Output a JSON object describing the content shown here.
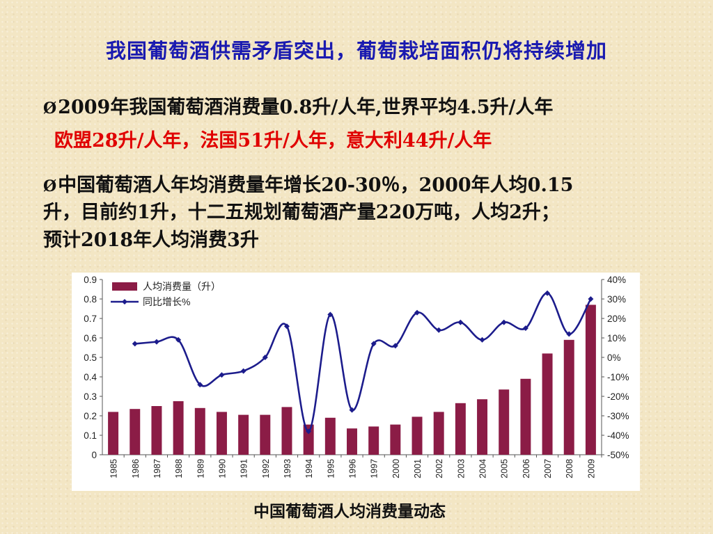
{
  "slide": {
    "title": "我国葡萄酒供需矛盾突出，葡萄栽培面积仍将持续增加",
    "bullet1": "2009年我国葡萄酒消费量0.8升/人年,世界平均4.5升/人年",
    "bullet1_red": "欧盟28升/人年，法国51升/人年，意大利44升/人年",
    "bullet2_line1": "中国葡萄酒人年均消费量年增长20-30％，2000年人均0.15",
    "bullet2_line2": "升，目前约1升，十二五规划葡萄酒产量220万吨，人均2升；",
    "bullet2_line3": "预计2018年人均消费3升",
    "bullet_marker": "Ø",
    "caption": "中国葡萄酒人均消费量动态"
  },
  "chart_data": {
    "type": "bar",
    "categories": [
      "1985",
      "1986",
      "1987",
      "1988",
      "1989",
      "1990",
      "1991",
      "1992",
      "1993",
      "1994",
      "1995",
      "1996",
      "1997",
      "2000",
      "2001",
      "2002",
      "2003",
      "2004",
      "2005",
      "2006",
      "2007",
      "2008",
      "2009"
    ],
    "series": [
      {
        "name": "人均消费量（升）",
        "type": "bar",
        "axis": "left",
        "color": "#8b1c46",
        "values": [
          0.22,
          0.235,
          0.25,
          0.275,
          0.24,
          0.22,
          0.205,
          0.205,
          0.245,
          0.155,
          0.19,
          0.135,
          0.145,
          0.155,
          0.195,
          0.22,
          0.265,
          0.285,
          0.335,
          0.39,
          0.52,
          0.59,
          0.77
        ]
      },
      {
        "name": "同比增长%",
        "type": "line",
        "axis": "right",
        "color": "#1c1c8c",
        "values": [
          null,
          7,
          8,
          9,
          -14,
          -9,
          -7,
          0,
          16,
          -38,
          22,
          -27,
          7,
          6,
          23,
          14,
          18,
          9,
          18,
          15,
          33,
          12,
          30
        ]
      }
    ],
    "y_left": {
      "min": 0,
      "max": 0.9,
      "ticks": [
        "0",
        "0.1",
        "0.2",
        "0.3",
        "0.4",
        "0.5",
        "0.6",
        "0.7",
        "0.8",
        "0.9"
      ]
    },
    "y_right": {
      "min": -50,
      "max": 40,
      "ticks": [
        "-50%",
        "-40%",
        "-30%",
        "-20%",
        "-10%",
        "0%",
        "10%",
        "20%",
        "30%",
        "40%"
      ]
    },
    "legend_position": "top-left",
    "grid": false
  }
}
